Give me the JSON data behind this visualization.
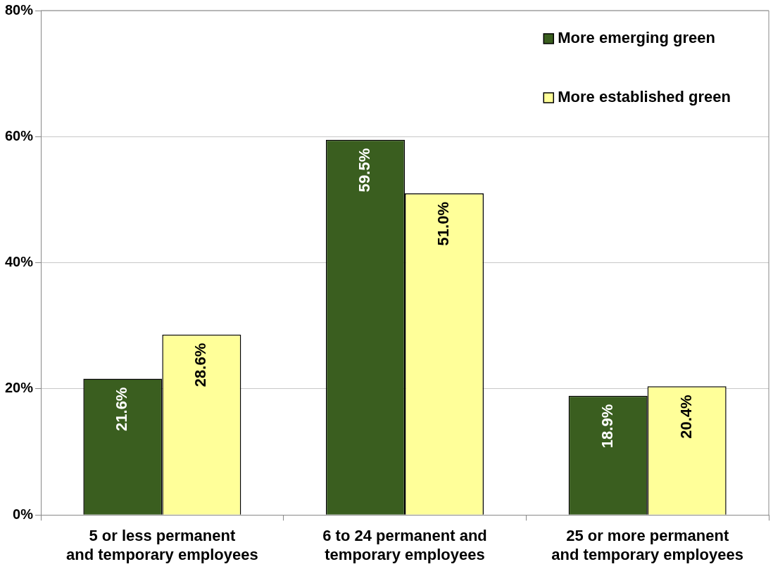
{
  "chart_data": {
    "type": "bar",
    "categories": [
      "5 or less permanent and temporary employees",
      "6 to 24 permanent and temporary employees",
      "25 or more permanent and temporary employees"
    ],
    "series": [
      {
        "name": "More emerging green",
        "color": "#3a5e1f",
        "values": [
          21.6,
          59.5,
          18.9
        ],
        "value_labels": [
          "21.6%",
          "59.5%",
          "18.9%"
        ]
      },
      {
        "name": "More established green",
        "color": "#ffff99",
        "values": [
          28.6,
          51.0,
          20.4
        ],
        "value_labels": [
          "28.6%",
          "51.0%",
          "20.4%"
        ]
      }
    ],
    "ylim": [
      0,
      80
    ],
    "yticks": [
      {
        "value": 0,
        "label": "0%"
      },
      {
        "value": 20,
        "label": "20%"
      },
      {
        "value": 40,
        "label": "40%"
      },
      {
        "value": 60,
        "label": "60%"
      },
      {
        "value": 80,
        "label": "80%"
      }
    ],
    "grid": "y",
    "legend": "top right"
  }
}
